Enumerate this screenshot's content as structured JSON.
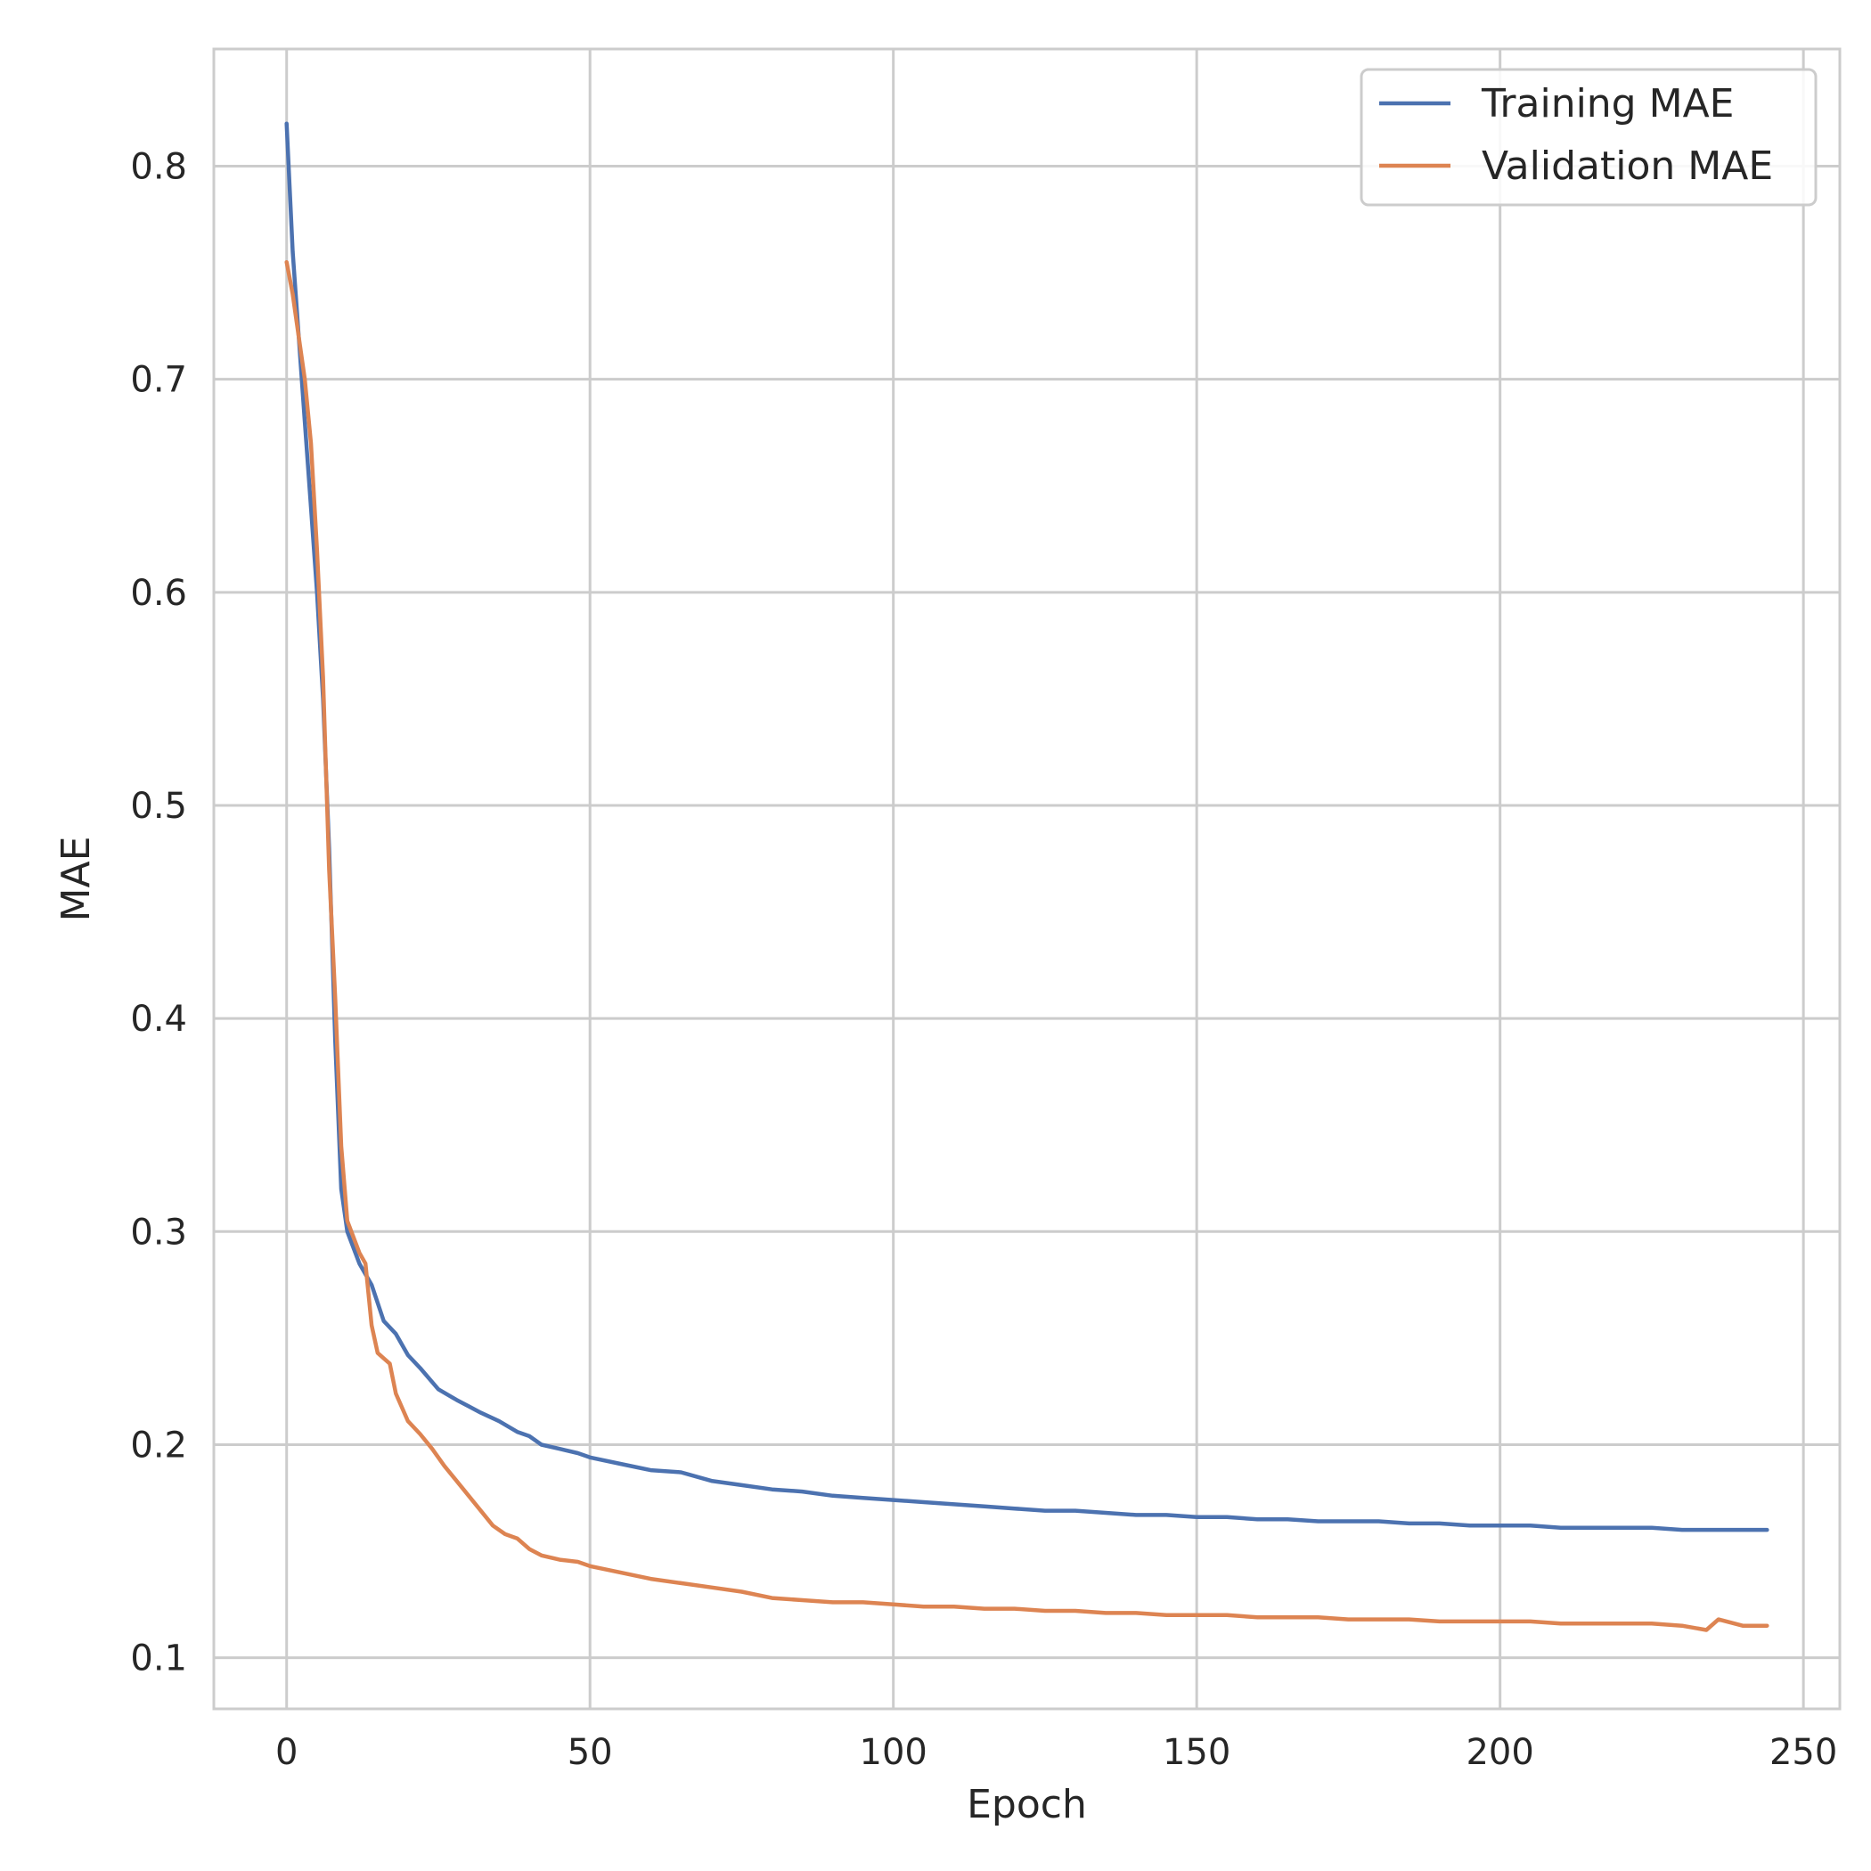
{
  "chart_data": {
    "type": "line",
    "title": "",
    "xlabel": "Epoch",
    "ylabel": "MAE",
    "xlim": [
      -12,
      256
    ],
    "ylim": [
      0.076,
      0.855
    ],
    "xticks": [
      0,
      50,
      100,
      150,
      200,
      250
    ],
    "yticks": [
      0.1,
      0.2,
      0.3,
      0.4,
      0.5,
      0.6,
      0.7,
      0.8
    ],
    "xtick_labels": [
      "0",
      "50",
      "100",
      "150",
      "200",
      "250"
    ],
    "ytick_labels": [
      "0.1",
      "0.2",
      "0.3",
      "0.4",
      "0.5",
      "0.6",
      "0.7",
      "0.8"
    ],
    "grid": true,
    "legend_position": "top-right",
    "series": [
      {
        "name": "Training MAE",
        "color": "#4c72b0",
        "points": [
          [
            0,
            0.82
          ],
          [
            1,
            0.76
          ],
          [
            2,
            0.72
          ],
          [
            3,
            0.68
          ],
          [
            4,
            0.64
          ],
          [
            5,
            0.6
          ],
          [
            6,
            0.55
          ],
          [
            7,
            0.48
          ],
          [
            8,
            0.39
          ],
          [
            9,
            0.32
          ],
          [
            10,
            0.3
          ],
          [
            12,
            0.285
          ],
          [
            14,
            0.275
          ],
          [
            16,
            0.258
          ],
          [
            18,
            0.252
          ],
          [
            20,
            0.242
          ],
          [
            22,
            0.236
          ],
          [
            25,
            0.226
          ],
          [
            28,
            0.221
          ],
          [
            30,
            0.218
          ],
          [
            32,
            0.215
          ],
          [
            35,
            0.211
          ],
          [
            38,
            0.206
          ],
          [
            40,
            0.204
          ],
          [
            42,
            0.2
          ],
          [
            45,
            0.198
          ],
          [
            48,
            0.196
          ],
          [
            50,
            0.194
          ],
          [
            55,
            0.191
          ],
          [
            60,
            0.188
          ],
          [
            65,
            0.187
          ],
          [
            70,
            0.183
          ],
          [
            75,
            0.181
          ],
          [
            80,
            0.179
          ],
          [
            85,
            0.178
          ],
          [
            90,
            0.176
          ],
          [
            95,
            0.175
          ],
          [
            100,
            0.174
          ],
          [
            105,
            0.173
          ],
          [
            110,
            0.172
          ],
          [
            115,
            0.171
          ],
          [
            120,
            0.17
          ],
          [
            125,
            0.169
          ],
          [
            130,
            0.169
          ],
          [
            135,
            0.168
          ],
          [
            140,
            0.167
          ],
          [
            145,
            0.167
          ],
          [
            150,
            0.166
          ],
          [
            155,
            0.166
          ],
          [
            160,
            0.165
          ],
          [
            165,
            0.165
          ],
          [
            170,
            0.164
          ],
          [
            175,
            0.164
          ],
          [
            180,
            0.164
          ],
          [
            185,
            0.163
          ],
          [
            190,
            0.163
          ],
          [
            195,
            0.162
          ],
          [
            200,
            0.162
          ],
          [
            205,
            0.162
          ],
          [
            210,
            0.161
          ],
          [
            215,
            0.161
          ],
          [
            220,
            0.161
          ],
          [
            225,
            0.161
          ],
          [
            230,
            0.16
          ],
          [
            235,
            0.16
          ],
          [
            240,
            0.16
          ],
          [
            244,
            0.16
          ]
        ]
      },
      {
        "name": "Validation MAE",
        "color": "#dd8452",
        "points": [
          [
            0,
            0.755
          ],
          [
            1,
            0.74
          ],
          [
            2,
            0.72
          ],
          [
            3,
            0.7
          ],
          [
            4,
            0.67
          ],
          [
            5,
            0.62
          ],
          [
            6,
            0.56
          ],
          [
            7,
            0.47
          ],
          [
            8,
            0.41
          ],
          [
            9,
            0.34
          ],
          [
            10,
            0.305
          ],
          [
            12,
            0.29
          ],
          [
            13,
            0.285
          ],
          [
            14,
            0.256
          ],
          [
            15,
            0.243
          ],
          [
            17,
            0.238
          ],
          [
            18,
            0.224
          ],
          [
            20,
            0.211
          ],
          [
            22,
            0.205
          ],
          [
            24,
            0.198
          ],
          [
            26,
            0.19
          ],
          [
            28,
            0.183
          ],
          [
            30,
            0.176
          ],
          [
            32,
            0.169
          ],
          [
            34,
            0.162
          ],
          [
            36,
            0.158
          ],
          [
            38,
            0.156
          ],
          [
            40,
            0.151
          ],
          [
            42,
            0.148
          ],
          [
            45,
            0.146
          ],
          [
            48,
            0.145
          ],
          [
            50,
            0.143
          ],
          [
            55,
            0.14
          ],
          [
            60,
            0.137
          ],
          [
            65,
            0.135
          ],
          [
            70,
            0.133
          ],
          [
            75,
            0.131
          ],
          [
            80,
            0.128
          ],
          [
            85,
            0.127
          ],
          [
            90,
            0.126
          ],
          [
            95,
            0.126
          ],
          [
            100,
            0.125
          ],
          [
            105,
            0.124
          ],
          [
            110,
            0.124
          ],
          [
            115,
            0.123
          ],
          [
            120,
            0.123
          ],
          [
            125,
            0.122
          ],
          [
            130,
            0.122
          ],
          [
            135,
            0.121
          ],
          [
            140,
            0.121
          ],
          [
            145,
            0.12
          ],
          [
            150,
            0.12
          ],
          [
            155,
            0.12
          ],
          [
            160,
            0.119
          ],
          [
            165,
            0.119
          ],
          [
            170,
            0.119
          ],
          [
            175,
            0.118
          ],
          [
            180,
            0.118
          ],
          [
            185,
            0.118
          ],
          [
            190,
            0.117
          ],
          [
            195,
            0.117
          ],
          [
            200,
            0.117
          ],
          [
            205,
            0.117
          ],
          [
            210,
            0.116
          ],
          [
            215,
            0.116
          ],
          [
            220,
            0.116
          ],
          [
            225,
            0.116
          ],
          [
            230,
            0.115
          ],
          [
            234,
            0.113
          ],
          [
            236,
            0.118
          ],
          [
            240,
            0.115
          ],
          [
            244,
            0.115
          ]
        ]
      }
    ]
  }
}
